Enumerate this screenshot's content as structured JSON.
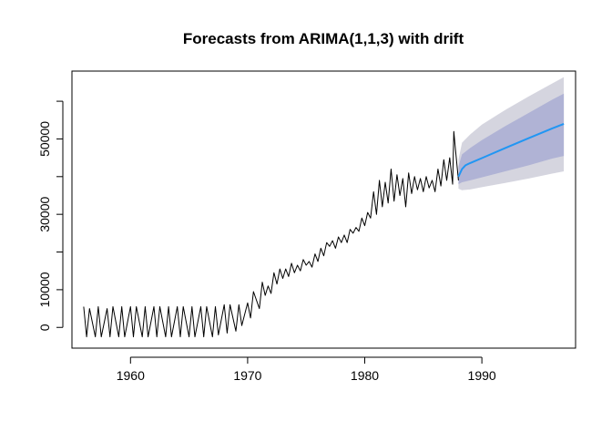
{
  "chart_data": {
    "type": "line",
    "title": "Forecasts from ARIMA(1,1,3) with drift",
    "xlabel": "",
    "ylabel": "",
    "xlim": [
      1955,
      1998
    ],
    "ylim": [
      -5500,
      68000
    ],
    "x_ticks": [
      1960,
      1970,
      1980,
      1990
    ],
    "x_tick_labels": [
      "1960",
      "1970",
      "1980",
      "1990"
    ],
    "y_ticks": [
      0,
      10000,
      30000,
      50000
    ],
    "y_tick_labels": [
      "0",
      "10000",
      "30000",
      "50000"
    ],
    "y_minor_ticks": [
      20000,
      40000,
      60000
    ],
    "grid": false,
    "legend": "none",
    "colors": {
      "history": "#000000",
      "forecast_mean": "#2196F3",
      "interval_80": "#B0B3D5",
      "interval_95": "#D5D5DF"
    },
    "series": [
      {
        "kind": "history",
        "x": [
          1956.0,
          1956.25,
          1956.5,
          1957.0,
          1957.25,
          1957.5,
          1958.0,
          1958.25,
          1958.5,
          1959.0,
          1959.25,
          1959.5,
          1960.0,
          1960.25,
          1960.5,
          1961.0,
          1961.25,
          1961.5,
          1962.0,
          1962.25,
          1962.5,
          1963.0,
          1963.25,
          1963.5,
          1964.0,
          1964.25,
          1964.5,
          1965.0,
          1965.25,
          1965.5,
          1966.0,
          1966.25,
          1966.5,
          1967.0,
          1967.25,
          1967.5,
          1968.0,
          1968.25,
          1968.5,
          1969.0,
          1969.25,
          1969.5,
          1970.0,
          1970.25,
          1970.5,
          1971.0,
          1971.25,
          1971.5,
          1971.75,
          1972.0,
          1972.25,
          1972.5,
          1972.75,
          1973.0,
          1973.25,
          1973.5,
          1973.75,
          1974.0,
          1974.25,
          1974.5,
          1974.75,
          1975.0,
          1975.25,
          1975.5,
          1975.75,
          1976.0,
          1976.25,
          1976.5,
          1976.75,
          1977.0,
          1977.25,
          1977.5,
          1977.75,
          1978.0,
          1978.25,
          1978.5,
          1978.75,
          1979.0,
          1979.25,
          1979.5,
          1979.75,
          1980.0,
          1980.25,
          1980.5,
          1980.75,
          1981.0,
          1981.25,
          1981.5,
          1981.75,
          1982.0,
          1982.25,
          1982.5,
          1982.75,
          1983.0,
          1983.25,
          1983.5,
          1983.75,
          1984.0,
          1984.25,
          1984.5,
          1984.75,
          1985.0,
          1985.25,
          1985.5,
          1985.75,
          1986.0,
          1986.25,
          1986.5,
          1986.75,
          1987.0,
          1987.25,
          1987.5,
          1987.6,
          1987.75,
          1988.0
        ],
        "y": [
          5500,
          -2500,
          5000,
          -2500,
          5500,
          -2500,
          5000,
          -2500,
          5500,
          -2500,
          5500,
          -2500,
          5500,
          -2500,
          5500,
          -2500,
          5500,
          -2500,
          5500,
          -2500,
          5500,
          -2500,
          5500,
          -2500,
          5500,
          -2500,
          5500,
          -2500,
          5500,
          -2500,
          5500,
          -2500,
          5500,
          -2500,
          5500,
          -2000,
          6000,
          -1500,
          6000,
          -1000,
          6000,
          500,
          6500,
          2500,
          9500,
          5000,
          12000,
          8500,
          11000,
          9000,
          14500,
          11500,
          15500,
          13000,
          15500,
          13500,
          17000,
          14500,
          16500,
          15000,
          18000,
          16500,
          17500,
          16000,
          19500,
          17500,
          21000,
          19000,
          22500,
          21500,
          23000,
          21000,
          24000,
          22500,
          24500,
          22500,
          26000,
          25000,
          26500,
          25500,
          29000,
          27000,
          30500,
          29000,
          36000,
          30000,
          39000,
          32000,
          38500,
          33000,
          42000,
          33500,
          40500,
          35000,
          39500,
          32000,
          41000,
          35500,
          40000,
          36500,
          39500,
          36000,
          40000,
          37000,
          39000,
          36000,
          42000,
          37500,
          44500,
          39000,
          45000,
          38000,
          52000,
          47000,
          39000
        ]
      },
      {
        "kind": "forecast_mean",
        "x": [
          1988.0,
          1988.3,
          1988.6,
          1989.0,
          1990.0,
          1992.0,
          1994.0,
          1996.0,
          1997.0
        ],
        "y": [
          40000,
          42000,
          43000,
          43600,
          44900,
          47600,
          50200,
          52800,
          54000
        ]
      }
    ],
    "intervals": [
      {
        "level": 95,
        "x": [
          1988.0,
          1988.3,
          1989.0,
          1990.0,
          1992.0,
          1994.0,
          1996.0,
          1997.0
        ],
        "lower": [
          36800,
          36400,
          36600,
          37200,
          38300,
          39500,
          40800,
          41400
        ],
        "upper": [
          44500,
          49000,
          51200,
          53800,
          57700,
          61300,
          64700,
          66400
        ]
      },
      {
        "level": 80,
        "x": [
          1988.0,
          1988.3,
          1989.0,
          1990.0,
          1992.0,
          1994.0,
          1996.0,
          1997.0
        ],
        "lower": [
          38000,
          38500,
          39000,
          39800,
          41400,
          43000,
          44800,
          45500
        ],
        "upper": [
          42700,
          45900,
          47600,
          49700,
          53400,
          56900,
          60400,
          62000
        ]
      }
    ]
  }
}
